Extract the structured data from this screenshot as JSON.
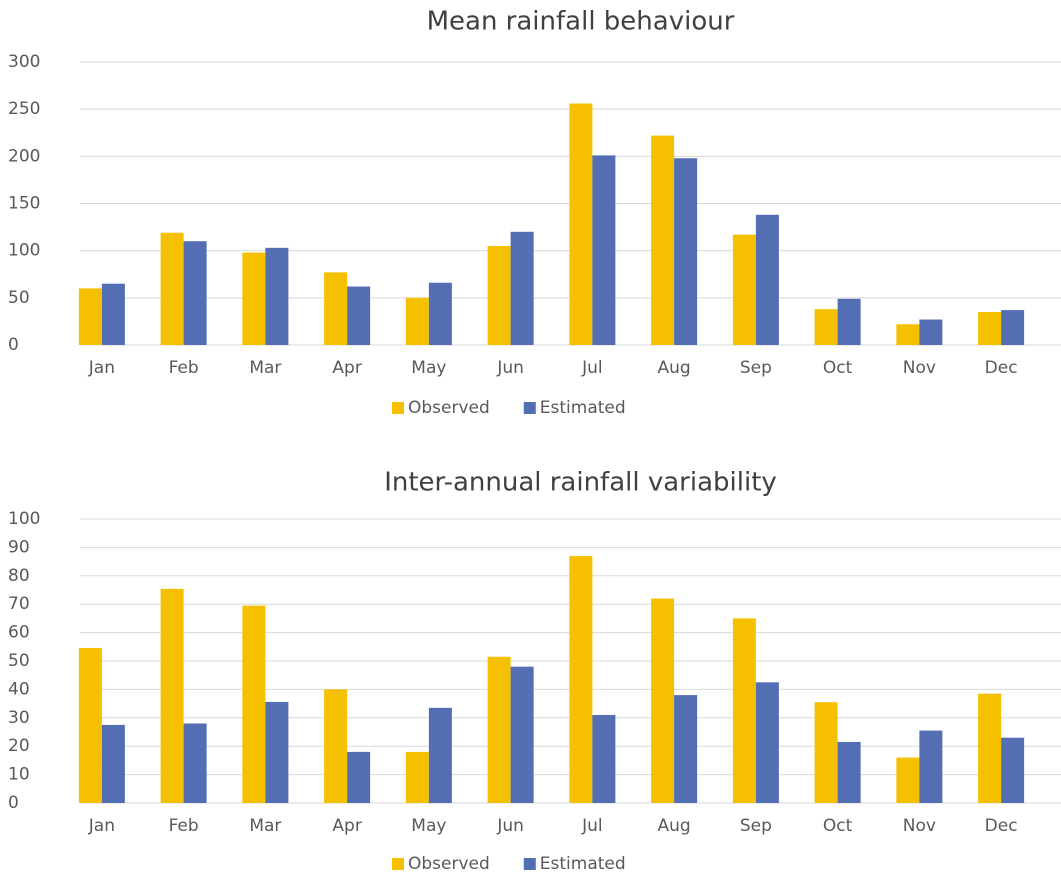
{
  "chart_data": [
    {
      "type": "bar",
      "title": "Mean rainfall behaviour",
      "categories": [
        "Jan",
        "Feb",
        "Mar",
        "Apr",
        "May",
        "Jun",
        "Jul",
        "Aug",
        "Sep",
        "Oct",
        "Nov",
        "Dec"
      ],
      "series": [
        {
          "name": "Observed",
          "color": "#f5c000",
          "values": [
            60,
            119,
            98,
            77,
            50,
            105,
            256,
            222,
            117,
            38,
            22,
            35
          ]
        },
        {
          "name": "Estimated",
          "color": "#536eb3",
          "values": [
            65,
            110,
            103,
            62,
            66,
            120,
            201,
            198,
            138,
            49,
            27,
            37
          ]
        }
      ],
      "ylim": [
        0,
        300
      ],
      "yticks": [
        0,
        50,
        100,
        150,
        200,
        250,
        300
      ],
      "grid": true,
      "legend": "bottom"
    },
    {
      "type": "bar",
      "title": "Inter-annual rainfall variability",
      "categories": [
        "Jan",
        "Feb",
        "Mar",
        "Apr",
        "May",
        "Jun",
        "Jul",
        "Aug",
        "Sep",
        "Oct",
        "Nov",
        "Dec"
      ],
      "series": [
        {
          "name": "Observed",
          "color": "#f5c000",
          "values": [
            54.6,
            75.4,
            69.5,
            40,
            18,
            51.5,
            87,
            72,
            65,
            35.5,
            16,
            38.5
          ]
        },
        {
          "name": "Estimated",
          "color": "#536eb3",
          "values": [
            27.5,
            28,
            35.6,
            18,
            33.5,
            48,
            31,
            38,
            42.5,
            21.5,
            25.5,
            23
          ]
        }
      ],
      "ylim": [
        0,
        100
      ],
      "yticks": [
        0,
        10,
        20,
        30,
        40,
        50,
        60,
        70,
        80,
        90,
        100
      ],
      "grid": true,
      "legend": "bottom"
    }
  ]
}
